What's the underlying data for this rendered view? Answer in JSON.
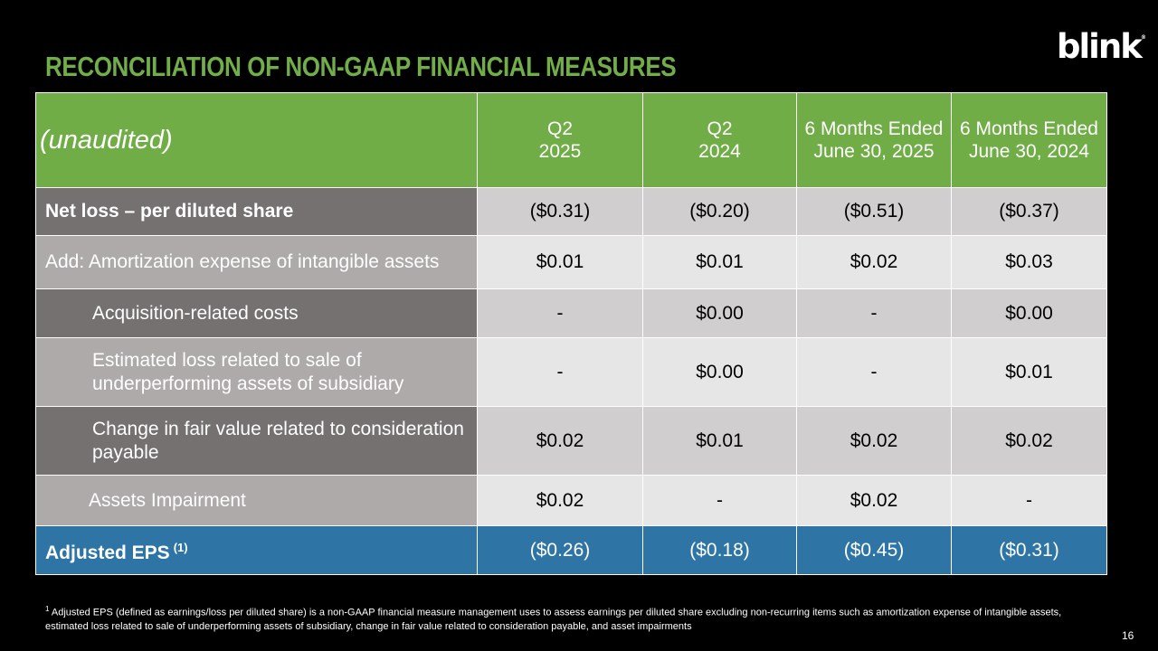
{
  "title": "RECONCILIATION OF NON-GAAP FINANCIAL MEASURES",
  "logo": {
    "text": "blink",
    "mark": "®"
  },
  "header": {
    "label": "(unaudited)",
    "columns": [
      {
        "line1": "Q2",
        "line2": "2025"
      },
      {
        "line1": "Q2",
        "line2": "2024"
      },
      {
        "line1": "6 Months Ended",
        "line2": "June 30, 2025"
      },
      {
        "line1": "6 Months Ended",
        "line2": "June 30, 2024"
      }
    ]
  },
  "rows": [
    {
      "label": "Net loss – per diluted share",
      "values": [
        "($0.31)",
        "($0.20)",
        "($0.51)",
        "($0.37)"
      ]
    },
    {
      "label": "Add: Amortization expense of intangible assets",
      "values": [
        "$0.01",
        "$0.01",
        "$0.02",
        "$0.03"
      ]
    },
    {
      "label": "Acquisition-related costs",
      "values": [
        "-",
        "$0.00",
        "-",
        "$0.00"
      ]
    },
    {
      "label_line1": "Estimated loss related to sale of",
      "label_line2": "underperforming assets of subsidiary",
      "values": [
        "-",
        "$0.00",
        "-",
        "$0.01"
      ]
    },
    {
      "label_line1": "Change in fair value related to consideration",
      "label_line2": "payable",
      "values": [
        "$0.02",
        "$0.01",
        "$0.02",
        "$0.02"
      ]
    },
    {
      "label": "Assets Impairment",
      "values": [
        "$0.02",
        "-",
        "$0.02",
        "-"
      ]
    }
  ],
  "total": {
    "label": "Adjusted EPS",
    "note": "(1)",
    "values": [
      "($0.26)",
      "($0.18)",
      "($0.45)",
      "($0.31)"
    ]
  },
  "footnote": {
    "marker": "1",
    "text": "Adjusted EPS (defined as earnings/loss per diluted share) is a non-GAAP financial measure management uses to assess earnings per diluted share excluding non-recurring items such as amortization expense of intangible assets, estimated loss related to sale of underperforming assets of subsidiary, change in fair value related to consideration payable, and asset impairments"
  },
  "page_number": "16",
  "colors": {
    "header_green": "#70ad47",
    "title_green": "#71ad48",
    "total_blue": "#2e75a6"
  }
}
